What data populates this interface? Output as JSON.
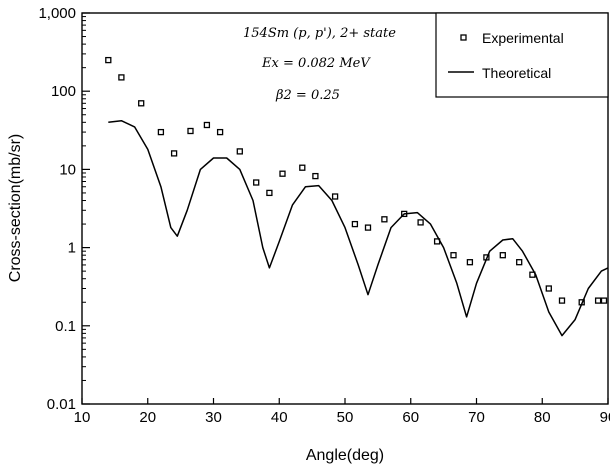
{
  "chart_data": {
    "type": "scatter",
    "title": "",
    "xlabel": "Angle(deg)",
    "ylabel": "Cross-section(mb/sr)",
    "xlim": [
      10,
      90
    ],
    "ylim": [
      0.01,
      1000
    ],
    "yscale": "log",
    "grid": false,
    "legend_position": "top-right",
    "x_ticks": [
      10,
      20,
      30,
      40,
      50,
      60,
      70,
      80,
      90
    ],
    "x_tick_labels": [
      "10",
      "20",
      "30",
      "40",
      "50",
      "60",
      "70",
      "80",
      "90"
    ],
    "y_ticks": [
      0.01,
      0.1,
      1,
      10,
      100,
      1000
    ],
    "y_tick_labels": [
      "0.01",
      "0.1",
      "1",
      "10",
      "100",
      "1,000"
    ],
    "annotations": [
      "154Sm (p, p'),  2+ state",
      "Ex = 0.082 MeV",
      "β2 = 0.25"
    ],
    "series": [
      {
        "name": "Experimental",
        "style": "markers",
        "x": [
          14,
          16,
          19,
          22,
          24,
          26.5,
          29,
          31,
          34,
          36.5,
          38.5,
          40.5,
          43.5,
          45.5,
          48.5,
          51.5,
          53.5,
          56,
          59,
          61.5,
          64,
          66.5,
          69,
          71.5,
          74,
          76.5,
          78.5,
          81,
          83,
          86,
          88.5,
          91
        ],
        "y": [
          250,
          150,
          70,
          30,
          16,
          31,
          37,
          30,
          17,
          6.8,
          5,
          8.8,
          10.5,
          8.2,
          4.5,
          2,
          1.8,
          2.3,
          2.7,
          2.1,
          1.2,
          0.8,
          0.65,
          0.75,
          0.8,
          0.65,
          0.45,
          0.3,
          0.21,
          0.2,
          0.21,
          0.21
        ]
      },
      {
        "name": "Theoretical",
        "style": "line",
        "x": [
          14,
          16,
          18,
          20,
          22,
          23.5,
          24.5,
          26,
          28,
          30,
          32,
          34,
          36,
          37.5,
          38.5,
          40,
          42,
          44,
          46,
          48,
          50,
          52,
          53.5,
          55,
          57,
          59,
          61,
          63,
          65,
          67,
          68.5,
          70,
          72,
          74,
          75.5,
          77,
          79,
          81,
          83,
          85,
          87,
          89,
          91
        ],
        "y": [
          40,
          42,
          35,
          18,
          6,
          1.8,
          1.4,
          3,
          10,
          14,
          14,
          10,
          4,
          1,
          0.55,
          1.2,
          3.5,
          6,
          6.2,
          4,
          1.8,
          0.6,
          0.25,
          0.6,
          1.8,
          2.7,
          2.8,
          2,
          1,
          0.35,
          0.13,
          0.35,
          0.9,
          1.25,
          1.3,
          0.9,
          0.45,
          0.15,
          0.075,
          0.12,
          0.3,
          0.5,
          0.55
        ]
      }
    ]
  }
}
